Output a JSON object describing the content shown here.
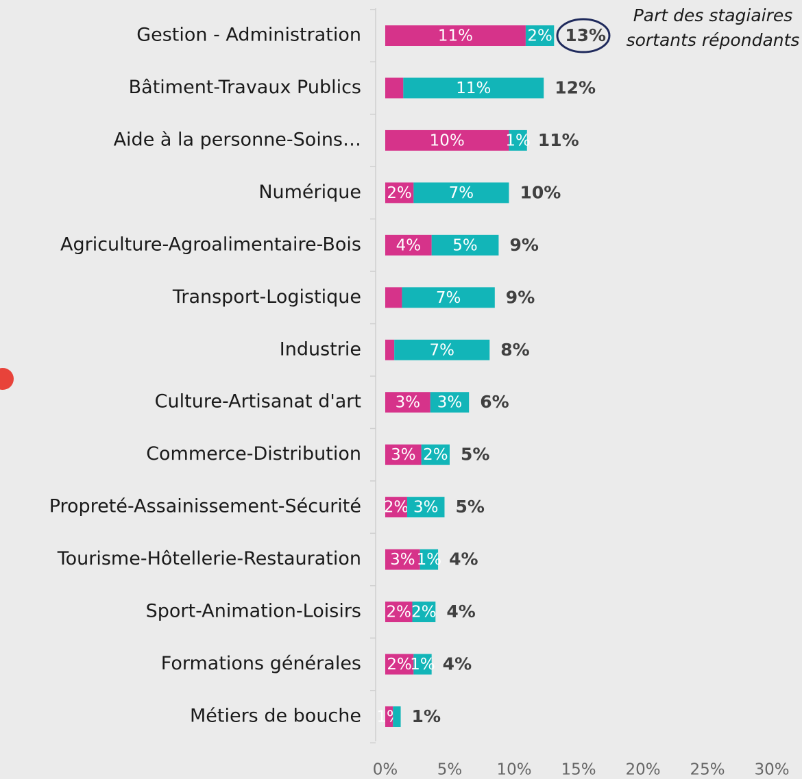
{
  "chart_data": {
    "type": "stacked-bar-horizontal",
    "annotation": [
      "Part des stagiaires",
      "sortants répondants"
    ],
    "categories": [
      "Gestion - Administration",
      "Bâtiment-Travaux Publics",
      "Aide à la personne-Soins…",
      "Numérique",
      "Agriculture-Agroalimentaire-Bois",
      "Transport-Logistique",
      "Industrie",
      "Culture-Artisanat d'art",
      "Commerce-Distribution",
      "Propreté-Assainissement-Sécurité",
      "Tourisme-Hôtellerie-Restauration",
      "Sport-Animation-Loisirs",
      "Formations générales",
      "Métiers de bouche"
    ],
    "series": [
      {
        "color": "#d6338a",
        "values": [
          10.9,
          1.4,
          9.6,
          2.2,
          3.6,
          1.3,
          0.7,
          3.5,
          2.8,
          1.7,
          2.7,
          2.1,
          2.2,
          0.6
        ],
        "value_labels": [
          "11%",
          null,
          "10%",
          "2%",
          "4%",
          null,
          null,
          "3%",
          "3%",
          "2%",
          "3%",
          "2%",
          "2%",
          "1%"
        ]
      },
      {
        "color": "#12b5b8",
        "values": [
          2.2,
          10.9,
          1.4,
          7.4,
          5.2,
          7.2,
          7.4,
          3.0,
          2.2,
          2.9,
          1.4,
          1.8,
          1.4,
          0.6
        ],
        "value_labels": [
          "2%",
          "11%",
          "1%",
          "7%",
          "5%",
          "7%",
          "7%",
          "3%",
          "2%",
          "3%",
          "1%",
          "2%",
          "1%",
          null
        ]
      }
    ],
    "totals": {
      "values": [
        13,
        12,
        11,
        10,
        9,
        9,
        8,
        6,
        5,
        5,
        4,
        4,
        4,
        1
      ],
      "value_labels": [
        "13%",
        "12%",
        "11%",
        "10%",
        "9%",
        "9%",
        "8%",
        "6%",
        "5%",
        "5%",
        "4%",
        "4%",
        "4%",
        "1%"
      ]
    },
    "xlim": [
      0,
      30
    ],
    "xticks": [
      {
        "value": 0,
        "label": "0%"
      },
      {
        "value": 5,
        "label": "5%"
      },
      {
        "value": 10,
        "label": "10%"
      },
      {
        "value": 15,
        "label": "15%"
      },
      {
        "value": 20,
        "label": "20%"
      },
      {
        "value": 25,
        "label": "25%"
      },
      {
        "value": 30,
        "label": "30%"
      }
    ],
    "grid": false
  }
}
